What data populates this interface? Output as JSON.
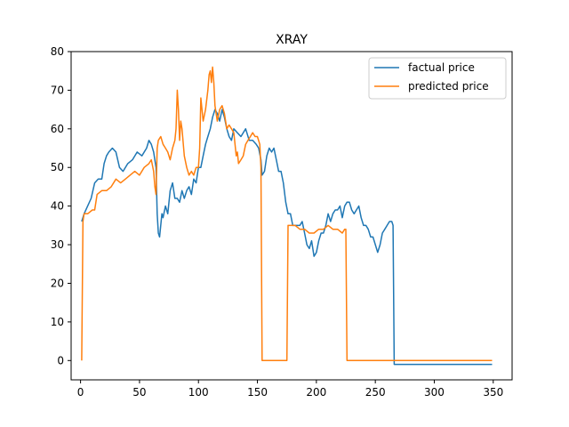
{
  "chart_data": {
    "type": "line",
    "title": "XRAY",
    "xlabel": "",
    "ylabel": "",
    "xlim": [
      -8,
      366
    ],
    "ylim": [
      -5,
      80
    ],
    "xticks": [
      0,
      50,
      100,
      150,
      200,
      250,
      300,
      350
    ],
    "yticks": [
      0,
      10,
      20,
      30,
      40,
      50,
      60,
      70,
      80
    ],
    "grid": false,
    "legend_position": "top-right",
    "series": [
      {
        "name": "factual price",
        "color": "#1f77b4",
        "points": [
          [
            1,
            36
          ],
          [
            3,
            38
          ],
          [
            6,
            40
          ],
          [
            9,
            42
          ],
          [
            12,
            46
          ],
          [
            15,
            47
          ],
          [
            18,
            47
          ],
          [
            20,
            51
          ],
          [
            22,
            53
          ],
          [
            24,
            54
          ],
          [
            27,
            55
          ],
          [
            30,
            54
          ],
          [
            33,
            50
          ],
          [
            36,
            49
          ],
          [
            40,
            51
          ],
          [
            44,
            52
          ],
          [
            48,
            54
          ],
          [
            52,
            53
          ],
          [
            56,
            55
          ],
          [
            58,
            57
          ],
          [
            60,
            56
          ],
          [
            62,
            54
          ],
          [
            64,
            50
          ],
          [
            65,
            38
          ],
          [
            66,
            33
          ],
          [
            67,
            32
          ],
          [
            68,
            35
          ],
          [
            69,
            38
          ],
          [
            70,
            37
          ],
          [
            72,
            40
          ],
          [
            74,
            38
          ],
          [
            76,
            44
          ],
          [
            78,
            46
          ],
          [
            80,
            42
          ],
          [
            82,
            42
          ],
          [
            84,
            41
          ],
          [
            86,
            44
          ],
          [
            88,
            42
          ],
          [
            90,
            44
          ],
          [
            92,
            45
          ],
          [
            94,
            43
          ],
          [
            96,
            47
          ],
          [
            98,
            46
          ],
          [
            100,
            50
          ],
          [
            102,
            50
          ],
          [
            104,
            53
          ],
          [
            106,
            56
          ],
          [
            108,
            58
          ],
          [
            110,
            60
          ],
          [
            112,
            63
          ],
          [
            114,
            65
          ],
          [
            116,
            64
          ],
          [
            118,
            62
          ],
          [
            120,
            65
          ],
          [
            122,
            63
          ],
          [
            124,
            60
          ],
          [
            126,
            58
          ],
          [
            128,
            57
          ],
          [
            130,
            60
          ],
          [
            133,
            59
          ],
          [
            136,
            58
          ],
          [
            140,
            60
          ],
          [
            143,
            57
          ],
          [
            146,
            57
          ],
          [
            149,
            56
          ],
          [
            151,
            55
          ],
          [
            153,
            52
          ],
          [
            154,
            48
          ],
          [
            156,
            49
          ],
          [
            158,
            53
          ],
          [
            160,
            55
          ],
          [
            162,
            54
          ],
          [
            164,
            55
          ],
          [
            166,
            52
          ],
          [
            168,
            49
          ],
          [
            170,
            49
          ],
          [
            172,
            46
          ],
          [
            174,
            41
          ],
          [
            176,
            38
          ],
          [
            178,
            38
          ],
          [
            180,
            35
          ],
          [
            183,
            35
          ],
          [
            186,
            35
          ],
          [
            188,
            36
          ],
          [
            190,
            33
          ],
          [
            192,
            30
          ],
          [
            194,
            29
          ],
          [
            196,
            31
          ],
          [
            198,
            27
          ],
          [
            200,
            28
          ],
          [
            202,
            31
          ],
          [
            204,
            33
          ],
          [
            206,
            33
          ],
          [
            208,
            35
          ],
          [
            210,
            38
          ],
          [
            212,
            36
          ],
          [
            214,
            38
          ],
          [
            216,
            39
          ],
          [
            218,
            39
          ],
          [
            220,
            40
          ],
          [
            222,
            37
          ],
          [
            224,
            40
          ],
          [
            226,
            41
          ],
          [
            228,
            41
          ],
          [
            230,
            39
          ],
          [
            232,
            38
          ],
          [
            234,
            39
          ],
          [
            236,
            40
          ],
          [
            238,
            37
          ],
          [
            240,
            35
          ],
          [
            242,
            35
          ],
          [
            244,
            34
          ],
          [
            246,
            32
          ],
          [
            248,
            32
          ],
          [
            250,
            30
          ],
          [
            252,
            28
          ],
          [
            254,
            30
          ],
          [
            256,
            33
          ],
          [
            258,
            34
          ],
          [
            260,
            35
          ],
          [
            262,
            36
          ],
          [
            264,
            36
          ],
          [
            265,
            35
          ],
          [
            266,
            -1
          ],
          [
            349,
            -1
          ]
        ]
      },
      {
        "name": "predicted price",
        "color": "#ff7f0e",
        "points": [
          [
            1,
            0
          ],
          [
            2,
            36
          ],
          [
            3,
            38
          ],
          [
            6,
            38
          ],
          [
            10,
            39
          ],
          [
            12,
            39
          ],
          [
            14,
            43
          ],
          [
            18,
            44
          ],
          [
            22,
            44
          ],
          [
            26,
            45
          ],
          [
            30,
            47
          ],
          [
            34,
            46
          ],
          [
            38,
            47
          ],
          [
            42,
            48
          ],
          [
            46,
            49
          ],
          [
            50,
            48
          ],
          [
            54,
            50
          ],
          [
            58,
            51
          ],
          [
            60,
            52
          ],
          [
            62,
            49
          ],
          [
            63,
            45
          ],
          [
            64,
            43
          ],
          [
            65,
            55
          ],
          [
            66,
            57
          ],
          [
            68,
            58
          ],
          [
            70,
            56
          ],
          [
            72,
            55
          ],
          [
            74,
            54
          ],
          [
            76,
            52
          ],
          [
            78,
            55
          ],
          [
            80,
            57
          ],
          [
            81,
            60
          ],
          [
            82,
            70
          ],
          [
            83,
            65
          ],
          [
            84,
            57
          ],
          [
            85,
            62
          ],
          [
            86,
            60
          ],
          [
            88,
            53
          ],
          [
            90,
            50
          ],
          [
            92,
            48
          ],
          [
            94,
            49
          ],
          [
            96,
            48
          ],
          [
            98,
            50
          ],
          [
            100,
            50
          ],
          [
            101,
            55
          ],
          [
            102,
            68
          ],
          [
            103,
            65
          ],
          [
            104,
            62
          ],
          [
            106,
            65
          ],
          [
            108,
            70
          ],
          [
            109,
            74
          ],
          [
            110,
            75
          ],
          [
            111,
            72
          ],
          [
            112,
            76
          ],
          [
            113,
            72
          ],
          [
            114,
            66
          ],
          [
            116,
            62
          ],
          [
            118,
            65
          ],
          [
            120,
            66
          ],
          [
            122,
            64
          ],
          [
            124,
            60
          ],
          [
            126,
            61
          ],
          [
            128,
            60
          ],
          [
            130,
            59
          ],
          [
            132,
            53
          ],
          [
            133,
            54
          ],
          [
            134,
            51
          ],
          [
            136,
            52
          ],
          [
            138,
            53
          ],
          [
            140,
            56
          ],
          [
            142,
            57
          ],
          [
            144,
            58
          ],
          [
            146,
            59
          ],
          [
            148,
            58
          ],
          [
            150,
            58
          ],
          [
            152,
            56
          ],
          [
            153,
            50
          ],
          [
            154,
            0
          ],
          [
            175,
            0
          ],
          [
            176,
            35
          ],
          [
            178,
            35
          ],
          [
            182,
            35
          ],
          [
            186,
            34
          ],
          [
            190,
            34
          ],
          [
            194,
            33
          ],
          [
            198,
            33
          ],
          [
            202,
            34
          ],
          [
            206,
            34
          ],
          [
            210,
            35
          ],
          [
            214,
            34
          ],
          [
            218,
            34
          ],
          [
            222,
            33
          ],
          [
            224,
            34
          ],
          [
            225,
            34
          ],
          [
            226,
            0
          ],
          [
            349,
            0
          ]
        ]
      }
    ]
  }
}
